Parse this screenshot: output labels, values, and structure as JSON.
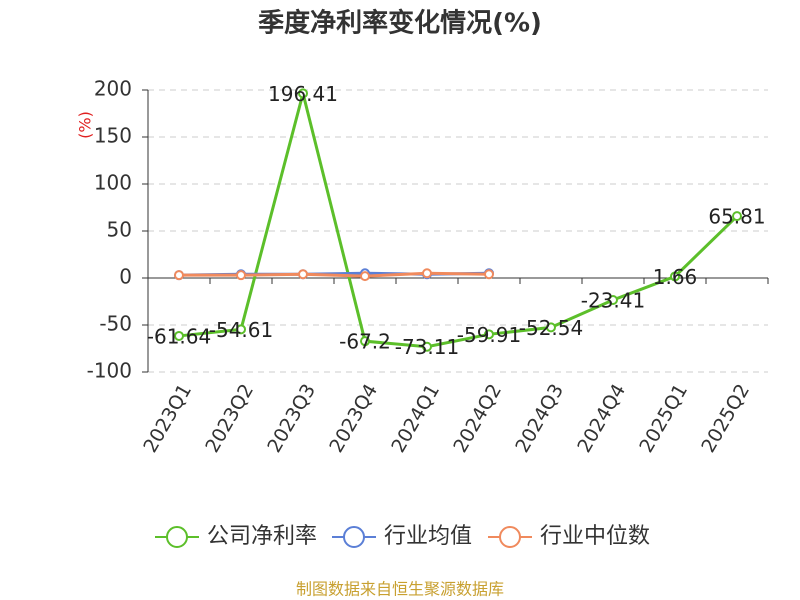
{
  "chart_data": {
    "type": "line",
    "title": "季度净利率变化情况(%)",
    "y_label": "(%)",
    "categories": [
      "2023Q1",
      "2023Q2",
      "2023Q3",
      "2023Q4",
      "2024Q1",
      "2024Q2",
      "2024Q3",
      "2024Q4",
      "2025Q1",
      "2025Q2"
    ],
    "series": [
      {
        "name": "公司净利率",
        "color": "#5cbf2a",
        "values": [
          -61.64,
          -54.61,
          196.41,
          -67.2,
          -73.11,
          -59.91,
          -52.54,
          -23.41,
          1.66,
          65.81
        ]
      },
      {
        "name": "行业均值",
        "color": "#5b7fd6",
        "values": [
          3,
          4,
          4,
          5,
          4,
          5,
          null,
          null,
          null,
          null
        ]
      },
      {
        "name": "行业中位数",
        "color": "#f08a5d",
        "values": [
          3,
          3,
          4,
          2,
          5,
          4,
          null,
          null,
          null,
          null
        ]
      }
    ],
    "labeled_series": 0,
    "ylim": [
      -100,
      200
    ],
    "yticks": [
      -100,
      -50,
      0,
      50,
      100,
      150,
      200
    ],
    "grid": true,
    "legend": "bottom",
    "source": "制图数据来自恒生聚源数据库"
  }
}
